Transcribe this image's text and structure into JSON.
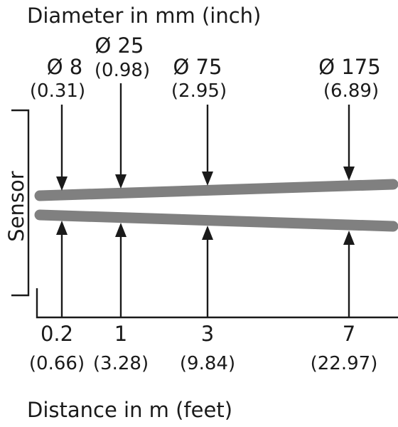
{
  "title": "Diameter in mm (inch)",
  "side_label": "Sensor",
  "bottom_label": "Distance in m (feet)",
  "beam_color": "#808080",
  "ink_color": "#1a1a1a",
  "points": [
    {
      "distance_m": "0.2",
      "distance_ft": "(0.66)",
      "diameter_mm": "Ø 8",
      "diameter_in": "(0.31)"
    },
    {
      "distance_m": "1",
      "distance_ft": "(3.28)",
      "diameter_mm": "Ø 25",
      "diameter_in": "(0.98)"
    },
    {
      "distance_m": "3",
      "distance_ft": "(9.84)",
      "diameter_mm": "Ø 75",
      "diameter_in": "(2.95)"
    },
    {
      "distance_m": "7",
      "distance_ft": "(22.97)",
      "diameter_mm": "Ø 175",
      "diameter_in": "(6.89)"
    }
  ]
}
